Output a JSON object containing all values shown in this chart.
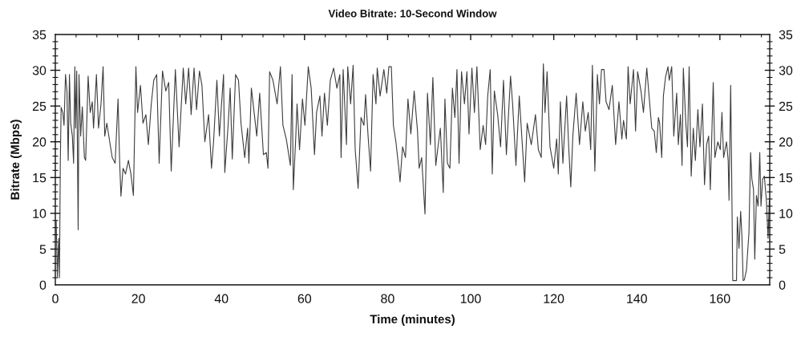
{
  "chart_data": {
    "type": "line",
    "title": "Video Bitrate: 10-Second Window",
    "xlabel": "Time (minutes)",
    "ylabel": "Bitrate (Mbps)",
    "x": [
      0.2,
      0.5,
      0.8,
      1.0,
      1.2,
      1.4,
      1.8,
      2.1,
      2.45,
      2.8,
      3.1,
      3.4,
      3.7,
      4.1,
      4.4,
      4.7,
      4.9,
      5.15,
      5.5,
      5.7,
      6.1,
      6.5,
      7.0,
      7.3,
      7.9,
      8.4,
      8.9,
      9.2,
      9.9,
      10.4,
      11.0,
      11.5,
      11.9,
      12.4,
      13.1,
      13.7,
      14.4,
      15.1,
      15.5,
      15.8,
      16.3,
      16.9,
      17.6,
      18.2,
      18.8,
      19.4,
      19.8,
      20.5,
      21.1,
      21.8,
      22.4,
      23.1,
      23.7,
      24.4,
      25.0,
      25.8,
      26.6,
      27.3,
      27.9,
      28.9,
      29.8,
      30.8,
      31.4,
      32.1,
      32.7,
      33.4,
      34.0,
      34.7,
      35.3,
      36.0,
      36.9,
      37.6,
      38.1,
      38.9,
      39.5,
      40.5,
      40.8,
      41.6,
      42.1,
      42.6,
      43.4,
      44.1,
      44.7,
      45.6,
      46.3,
      46.6,
      47.2,
      48.0,
      48.5,
      49.2,
      50.1,
      50.8,
      51.2,
      51.6,
      52.4,
      53.4,
      54.2,
      54.8,
      55.6,
      56.6,
      57.0,
      57.3,
      57.9,
      58.2,
      58.8,
      59.5,
      60.1,
      60.9,
      61.6,
      62.4,
      62.9,
      63.7,
      64.2,
      64.8,
      65.5,
      66.2,
      67.0,
      67.8,
      68.5,
      68.8,
      69.3,
      70.1,
      70.4,
      71.1,
      71.7,
      72.2,
      72.9,
      73.6,
      74.3,
      74.7,
      75.3,
      75.9,
      76.5,
      77.2,
      77.5,
      78.2,
      79.1,
      79.8,
      80.3,
      80.9,
      81.4,
      82.0,
      82.7,
      83.0,
      83.6,
      84.3,
      84.9,
      85.6,
      86.4,
      87.2,
      87.6,
      88.2,
      89.0,
      89.6,
      90.3,
      90.9,
      91.6,
      92.2,
      92.7,
      93.4,
      93.8,
      94.4,
      95.0,
      95.6,
      96.2,
      96.7,
      97.2,
      97.8,
      98.5,
      99.1,
      99.6,
      100.3,
      100.9,
      101.5,
      102.3,
      103.0,
      103.6,
      104.1,
      104.7,
      105.2,
      105.7,
      106.5,
      107.2,
      107.9,
      108.6,
      109.6,
      110.1,
      110.9,
      111.7,
      112.3,
      113.0,
      113.6,
      114.6,
      115.6,
      116.3,
      117.0,
      117.5,
      117.9,
      118.4,
      119.1,
      120.0,
      120.7,
      121.1,
      121.6,
      122.2,
      123.1,
      123.6,
      124.1,
      124.6,
      125.4,
      126.2,
      127.0,
      127.6,
      128.3,
      128.9,
      129.3,
      129.9,
      130.5,
      131.0,
      131.5,
      132.1,
      132.6,
      133.3,
      134.1,
      134.9,
      135.7,
      136.4,
      136.8,
      137.5,
      137.9,
      138.4,
      139.2,
      139.7,
      140.2,
      141.0,
      141.6,
      142.4,
      142.9,
      143.6,
      144.2,
      144.7,
      145.2,
      145.5,
      146.0,
      146.4,
      146.9,
      147.5,
      147.8,
      148.4,
      148.9,
      149.6,
      150.0,
      150.5,
      150.9,
      151.2,
      151.8,
      152.2,
      152.6,
      153.1,
      153.6,
      154.1,
      154.7,
      155.2,
      155.8,
      156.3,
      156.8,
      157.3,
      157.7,
      158.4,
      158.8,
      159.5,
      160.1,
      160.5,
      160.9,
      161.6,
      162.0,
      162.2,
      162.6,
      162.8,
      163.1,
      164.0,
      164.2,
      164.6,
      165.0,
      165.3,
      165.6,
      165.9,
      166.4,
      167.0,
      167.4,
      167.7,
      168.1,
      168.4,
      168.8,
      169.2,
      169.6,
      169.9,
      170.3,
      170.7,
      171.2,
      171.6,
      171.9
    ],
    "series": [
      {
        "color": "#3c3c3c",
        "values": [
          9,
          1.1,
          6.5,
          1,
          17,
          24.8,
          24.1,
          22.3,
          29.4,
          27.1,
          17.4,
          29.4,
          22.6,
          20.8,
          17,
          30.5,
          21.9,
          29.9,
          7.7,
          29.4,
          20.8,
          24.9,
          17.8,
          17.4,
          29.2,
          24.1,
          25.6,
          21.9,
          29.4,
          21.9,
          25.3,
          30.5,
          20.8,
          22.6,
          20,
          17.8,
          17,
          26,
          17,
          12.4,
          16.3,
          15.5,
          17.4,
          15.5,
          12.5,
          30.5,
          24.1,
          27.9,
          22.6,
          23.8,
          19.6,
          25.3,
          28.6,
          29.4,
          17,
          29.9,
          27.1,
          28.3,
          15.9,
          30.1,
          19.3,
          30.3,
          25.3,
          30.3,
          23.8,
          30.3,
          24.5,
          29.9,
          27.9,
          20,
          23.8,
          16.3,
          20,
          28.6,
          20.8,
          29.4,
          15.7,
          22.3,
          27.5,
          17.6,
          29.4,
          28.6,
          22.6,
          17.8,
          21.9,
          17,
          27.5,
          23.4,
          20.8,
          26.8,
          18.2,
          18.5,
          16.3,
          29.8,
          28.6,
          25.3,
          30.5,
          22.3,
          20.4,
          16.7,
          29.4,
          13.3,
          20.8,
          25.3,
          18.9,
          26,
          22.3,
          30.5,
          27.5,
          18.2,
          24.1,
          26.4,
          20.8,
          26.8,
          22.3,
          28.6,
          30.3,
          27.5,
          29.4,
          17.8,
          30.1,
          19.6,
          30.5,
          25.3,
          30.7,
          18.9,
          13.5,
          23.4,
          22.3,
          26.6,
          20.8,
          15.9,
          29.4,
          25.3,
          30.3,
          26.4,
          30.1,
          26.8,
          30.5,
          30.5,
          22.3,
          20,
          16.3,
          14.4,
          19.3,
          17.8,
          26,
          21.1,
          27.1,
          21.5,
          16.3,
          17.8,
          9.9,
          26.8,
          19.6,
          29,
          16.7,
          19.6,
          21.9,
          12.9,
          26,
          17,
          16.3,
          27.5,
          23.4,
          30.1,
          17,
          29.8,
          25.3,
          29.8,
          21.1,
          30.3,
          24.1,
          30.5,
          18.9,
          22.3,
          19.6,
          26.4,
          30.1,
          15.5,
          27.1,
          23.8,
          19.3,
          28.6,
          18.2,
          29.2,
          25.3,
          16.7,
          26.4,
          20.8,
          14.4,
          22.6,
          19.6,
          23.8,
          18.9,
          17.8,
          30.9,
          24.1,
          29.8,
          19.3,
          16.3,
          20.4,
          15.5,
          25.6,
          17,
          26.4,
          19.3,
          13.7,
          20.8,
          26.8,
          19.6,
          25.6,
          21.5,
          24.1,
          18.9,
          30.7,
          15.9,
          29.4,
          25.3,
          30.1,
          30.1,
          25.6,
          24.5,
          27.9,
          19.6,
          25.6,
          20.4,
          23,
          20.4,
          30.5,
          25.3,
          30.1,
          21.5,
          29.8,
          27.1,
          24.1,
          30.3,
          26.8,
          21.9,
          21.5,
          18.5,
          23.4,
          22.6,
          17.8,
          26.4,
          29,
          30.5,
          28.6,
          30.5,
          20.8,
          26.8,
          19.6,
          23.8,
          16.7,
          30.3,
          22.6,
          19.3,
          30.5,
          15.2,
          21.9,
          17.4,
          24.5,
          19.3,
          25.3,
          14,
          19.6,
          20.8,
          13.3,
          28.3,
          17.8,
          20,
          18.9,
          24.1,
          17.8,
          20,
          17.4,
          11.8,
          27.9,
          17.8,
          0.6,
          0.6,
          9.5,
          5.1,
          10.3,
          6.9,
          0.6,
          0.7,
          2.1,
          7.3,
          18.5,
          14.8,
          13.3,
          3.6,
          12.5,
          11,
          18.5,
          11,
          14.8,
          15.2,
          11.8,
          6.5,
          11.8
        ]
      }
    ],
    "xlim": [
      0,
      172
    ],
    "xticks": [
      0,
      {
        "value": 5,
        "label": null
      },
      {
        "value": 10,
        "label": null
      },
      {
        "value": 15,
        "label": null
      },
      20,
      {
        "value": 25,
        "label": null
      },
      {
        "value": 30,
        "label": null
      },
      {
        "value": 35,
        "label": null
      },
      40,
      {
        "value": 45,
        "label": null
      },
      {
        "value": 50,
        "label": null
      },
      {
        "value": 55,
        "label": null
      },
      60,
      {
        "value": 65,
        "label": null
      },
      {
        "value": 70,
        "label": null
      },
      {
        "value": 75,
        "label": null
      },
      80,
      {
        "value": 85,
        "label": null
      },
      {
        "value": 90,
        "label": null
      },
      {
        "value": 95,
        "label": null
      },
      100,
      {
        "value": 105,
        "label": null
      },
      {
        "value": 110,
        "label": null
      },
      {
        "value": 115,
        "label": null
      },
      120,
      {
        "value": 125,
        "label": null
      },
      {
        "value": 130,
        "label": null
      },
      {
        "value": 135,
        "label": null
      },
      140,
      {
        "value": 145,
        "label": null
      },
      {
        "value": 150,
        "label": null
      },
      {
        "value": 155,
        "label": null
      },
      160,
      {
        "value": 165,
        "label": null
      },
      {
        "value": 170,
        "label": null
      }
    ],
    "ylim": [
      0,
      35
    ],
    "yticks": [
      0,
      {
        "value": 1,
        "label": null
      },
      {
        "value": 2,
        "label": null
      },
      {
        "value": 3,
        "label": null
      },
      {
        "value": 4,
        "label": null
      },
      5,
      {
        "value": 6,
        "label": null
      },
      {
        "value": 7,
        "label": null
      },
      {
        "value": 8,
        "label": null
      },
      {
        "value": 9,
        "label": null
      },
      10,
      {
        "value": 11,
        "label": null
      },
      {
        "value": 12,
        "label": null
      },
      {
        "value": 13,
        "label": null
      },
      {
        "value": 14,
        "label": null
      },
      15,
      {
        "value": 16,
        "label": null
      },
      {
        "value": 17,
        "label": null
      },
      {
        "value": 18,
        "label": null
      },
      {
        "value": 19,
        "label": null
      },
      20,
      {
        "value": 21,
        "label": null
      },
      {
        "value": 22,
        "label": null
      },
      {
        "value": 23,
        "label": null
      },
      {
        "value": 24,
        "label": null
      },
      25,
      {
        "value": 26,
        "label": null
      },
      {
        "value": 27,
        "label": null
      },
      {
        "value": 28,
        "label": null
      },
      {
        "value": 29,
        "label": null
      },
      30,
      {
        "value": 31,
        "label": null
      },
      {
        "value": 32,
        "label": null
      },
      {
        "value": 33,
        "label": null
      },
      {
        "value": 34,
        "label": null
      },
      35
    ],
    "y2lim": [
      0,
      35
    ],
    "y2ticks": [
      0,
      {
        "value": 1,
        "label": null
      },
      {
        "value": 2,
        "label": null
      },
      {
        "value": 3,
        "label": null
      },
      {
        "value": 4,
        "label": null
      },
      5,
      {
        "value": 6,
        "label": null
      },
      {
        "value": 7,
        "label": null
      },
      {
        "value": 8,
        "label": null
      },
      {
        "value": 9,
        "label": null
      },
      10,
      {
        "value": 11,
        "label": null
      },
      {
        "value": 12,
        "label": null
      },
      {
        "value": 13,
        "label": null
      },
      {
        "value": 14,
        "label": null
      },
      15,
      {
        "value": 16,
        "label": null
      },
      {
        "value": 17,
        "label": null
      },
      {
        "value": 18,
        "label": null
      },
      {
        "value": 19,
        "label": null
      },
      20,
      {
        "value": 21,
        "label": null
      },
      {
        "value": 22,
        "label": null
      },
      {
        "value": 23,
        "label": null
      },
      {
        "value": 24,
        "label": null
      },
      25,
      {
        "value": 26,
        "label": null
      },
      {
        "value": 27,
        "label": null
      },
      {
        "value": 28,
        "label": null
      },
      {
        "value": 29,
        "label": null
      },
      30,
      {
        "value": 31,
        "label": null
      },
      {
        "value": 32,
        "label": null
      },
      {
        "value": 33,
        "label": null
      },
      {
        "value": 34,
        "label": null
      },
      35
    ],
    "grid": false,
    "marker": "none",
    "line_style": "solid"
  }
}
